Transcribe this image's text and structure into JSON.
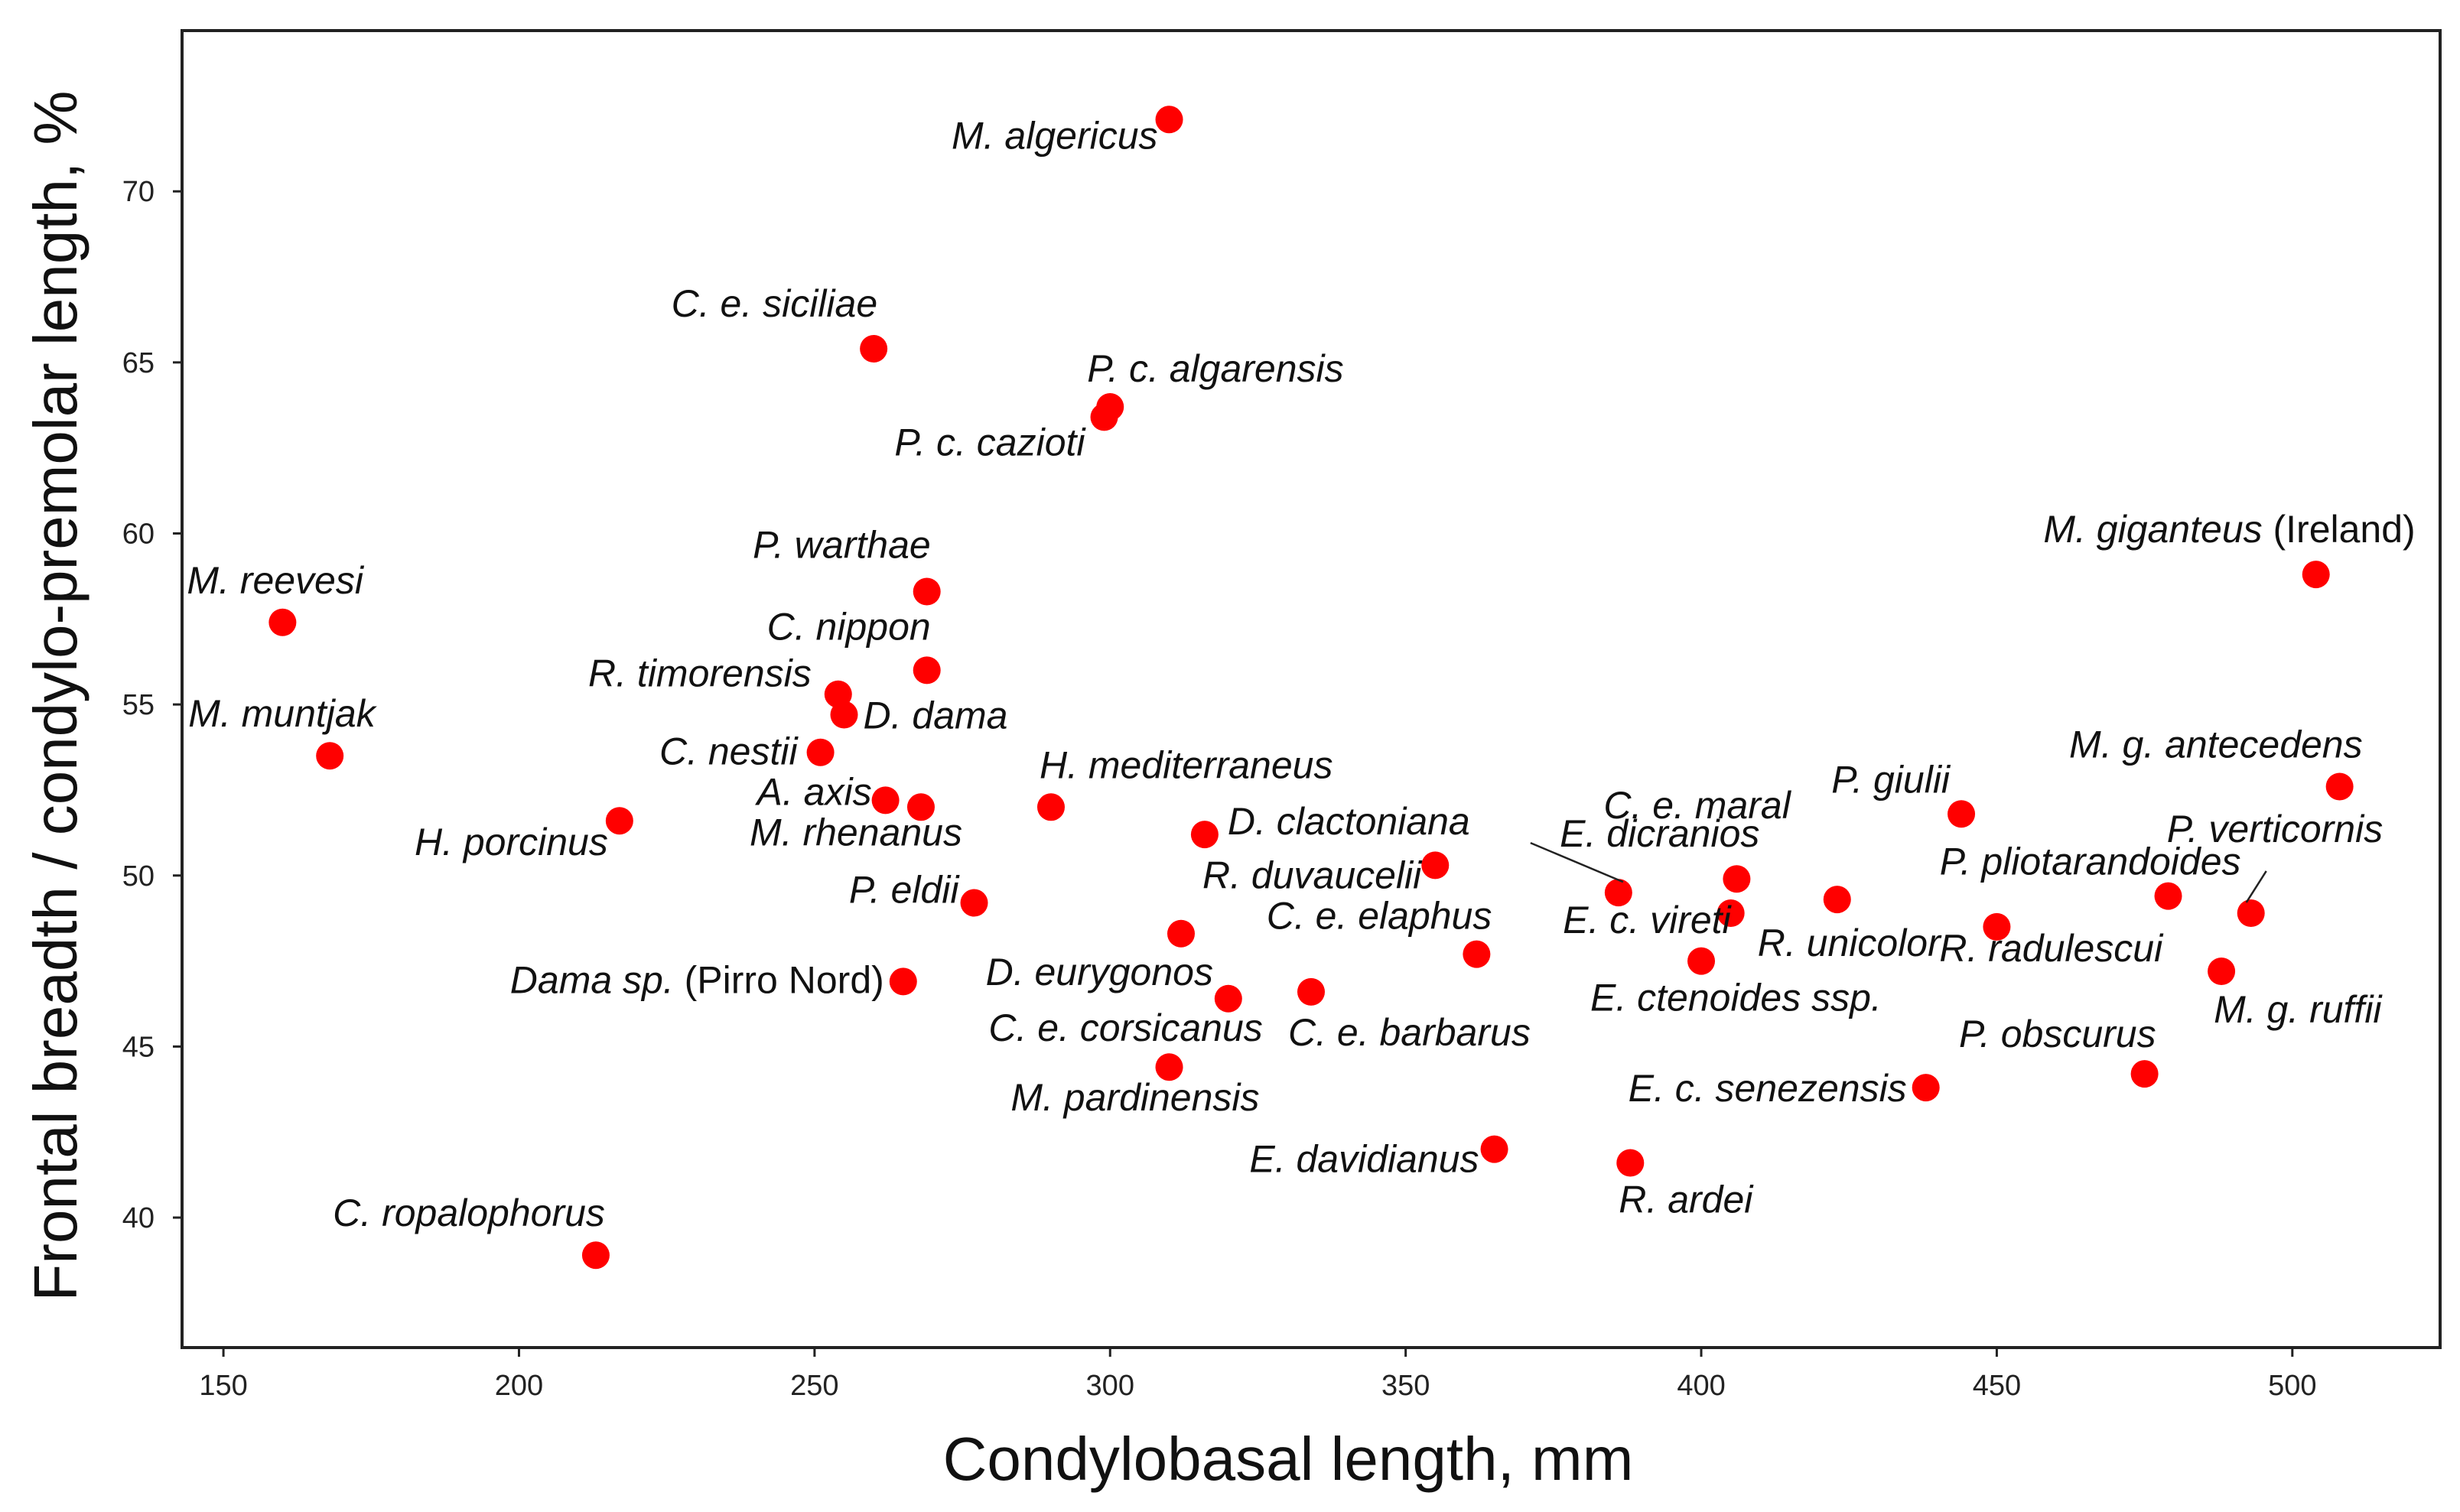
{
  "chart_data": {
    "type": "scatter",
    "xlabel": "Condylobasal length, mm",
    "ylabel": "Frontal breadth / condylo-premolar length, %",
    "xlim": [
      143,
      525
    ],
    "ylim": [
      36.2,
      74.7
    ],
    "xticks": [
      150,
      200,
      250,
      300,
      350,
      400,
      450,
      500
    ],
    "yticks": [
      40,
      45,
      50,
      55,
      60,
      65,
      70
    ],
    "grid": false,
    "marker_color": "#ff0000",
    "points": [
      {
        "x": 310,
        "y": 72.1,
        "label": "M. algericus"
      },
      {
        "x": 260,
        "y": 65.4,
        "label": "C. e. siciliae"
      },
      {
        "x": 300,
        "y": 63.7,
        "label": "P. c. algarensis"
      },
      {
        "x": 299,
        "y": 63.4,
        "label": "P. c. cazioti"
      },
      {
        "x": 504,
        "y": 58.8,
        "label": "M. giganteus",
        "suffix": "(Ireland)"
      },
      {
        "x": 160,
        "y": 57.4,
        "label": "M. reevesi"
      },
      {
        "x": 269,
        "y": 58.3,
        "label": "P. warthae"
      },
      {
        "x": 269,
        "y": 56.0,
        "label": "C. nippon"
      },
      {
        "x": 254,
        "y": 55.3,
        "label": "R. timorensis"
      },
      {
        "x": 255,
        "y": 54.7,
        "label": "D. dama"
      },
      {
        "x": 168,
        "y": 53.5,
        "label": "M. muntjak"
      },
      {
        "x": 251,
        "y": 53.6,
        "label": "C. nestii"
      },
      {
        "x": 508,
        "y": 52.6,
        "label": "M. g. antecedens"
      },
      {
        "x": 262,
        "y": 52.2,
        "label": "A. axis"
      },
      {
        "x": 268,
        "y": 52.0,
        "label": "M. rhenanus"
      },
      {
        "x": 290,
        "y": 52.0,
        "label": "H. mediterraneus"
      },
      {
        "x": 444,
        "y": 51.8,
        "label": "P. giulii"
      },
      {
        "x": 217,
        "y": 51.6,
        "label": "H. porcinus"
      },
      {
        "x": 316,
        "y": 51.2,
        "label": "D. clactoniana"
      },
      {
        "x": 355,
        "y": 50.3,
        "label": "R. duvaucelii"
      },
      {
        "x": 406,
        "y": 49.9,
        "label": "E. dicranios"
      },
      {
        "x": 386,
        "y": 49.5,
        "label": "C. e. maral"
      },
      {
        "x": 479,
        "y": 49.4,
        "label": "P. pliotarandoides"
      },
      {
        "x": 423,
        "y": 49.3,
        "label": "R. unicolor"
      },
      {
        "x": 277,
        "y": 49.2,
        "label": "P. eldii"
      },
      {
        "x": 493,
        "y": 48.9,
        "label": "P. verticornis"
      },
      {
        "x": 405,
        "y": 48.9,
        "label": "E. c. vireti"
      },
      {
        "x": 450,
        "y": 48.5,
        "label": "R. radulescui"
      },
      {
        "x": 312,
        "y": 48.3,
        "label": "D. eurygonos"
      },
      {
        "x": 362,
        "y": 47.7,
        "label": "C. e. elaphus"
      },
      {
        "x": 400,
        "y": 47.5,
        "label": "E. ctenoides ssp."
      },
      {
        "x": 488,
        "y": 47.2,
        "label": "M. g. ruffii"
      },
      {
        "x": 265,
        "y": 46.9,
        "label": "Dama sp.",
        "suffix": "(Pirro Nord)"
      },
      {
        "x": 334,
        "y": 46.6,
        "label": "C. e. barbarus"
      },
      {
        "x": 320,
        "y": 46.4,
        "label": "C. e. corsicanus"
      },
      {
        "x": 310,
        "y": 44.4,
        "label": "M. pardinensis"
      },
      {
        "x": 475,
        "y": 44.2,
        "label": "P. obscurus"
      },
      {
        "x": 438,
        "y": 43.8,
        "label": "E. c. senezensis"
      },
      {
        "x": 365,
        "y": 42.0,
        "label": "E. davidianus"
      },
      {
        "x": 388,
        "y": 41.6,
        "label": "R. ardei"
      },
      {
        "x": 213,
        "y": 38.9,
        "label": "C. ropalophorus"
      }
    ]
  }
}
